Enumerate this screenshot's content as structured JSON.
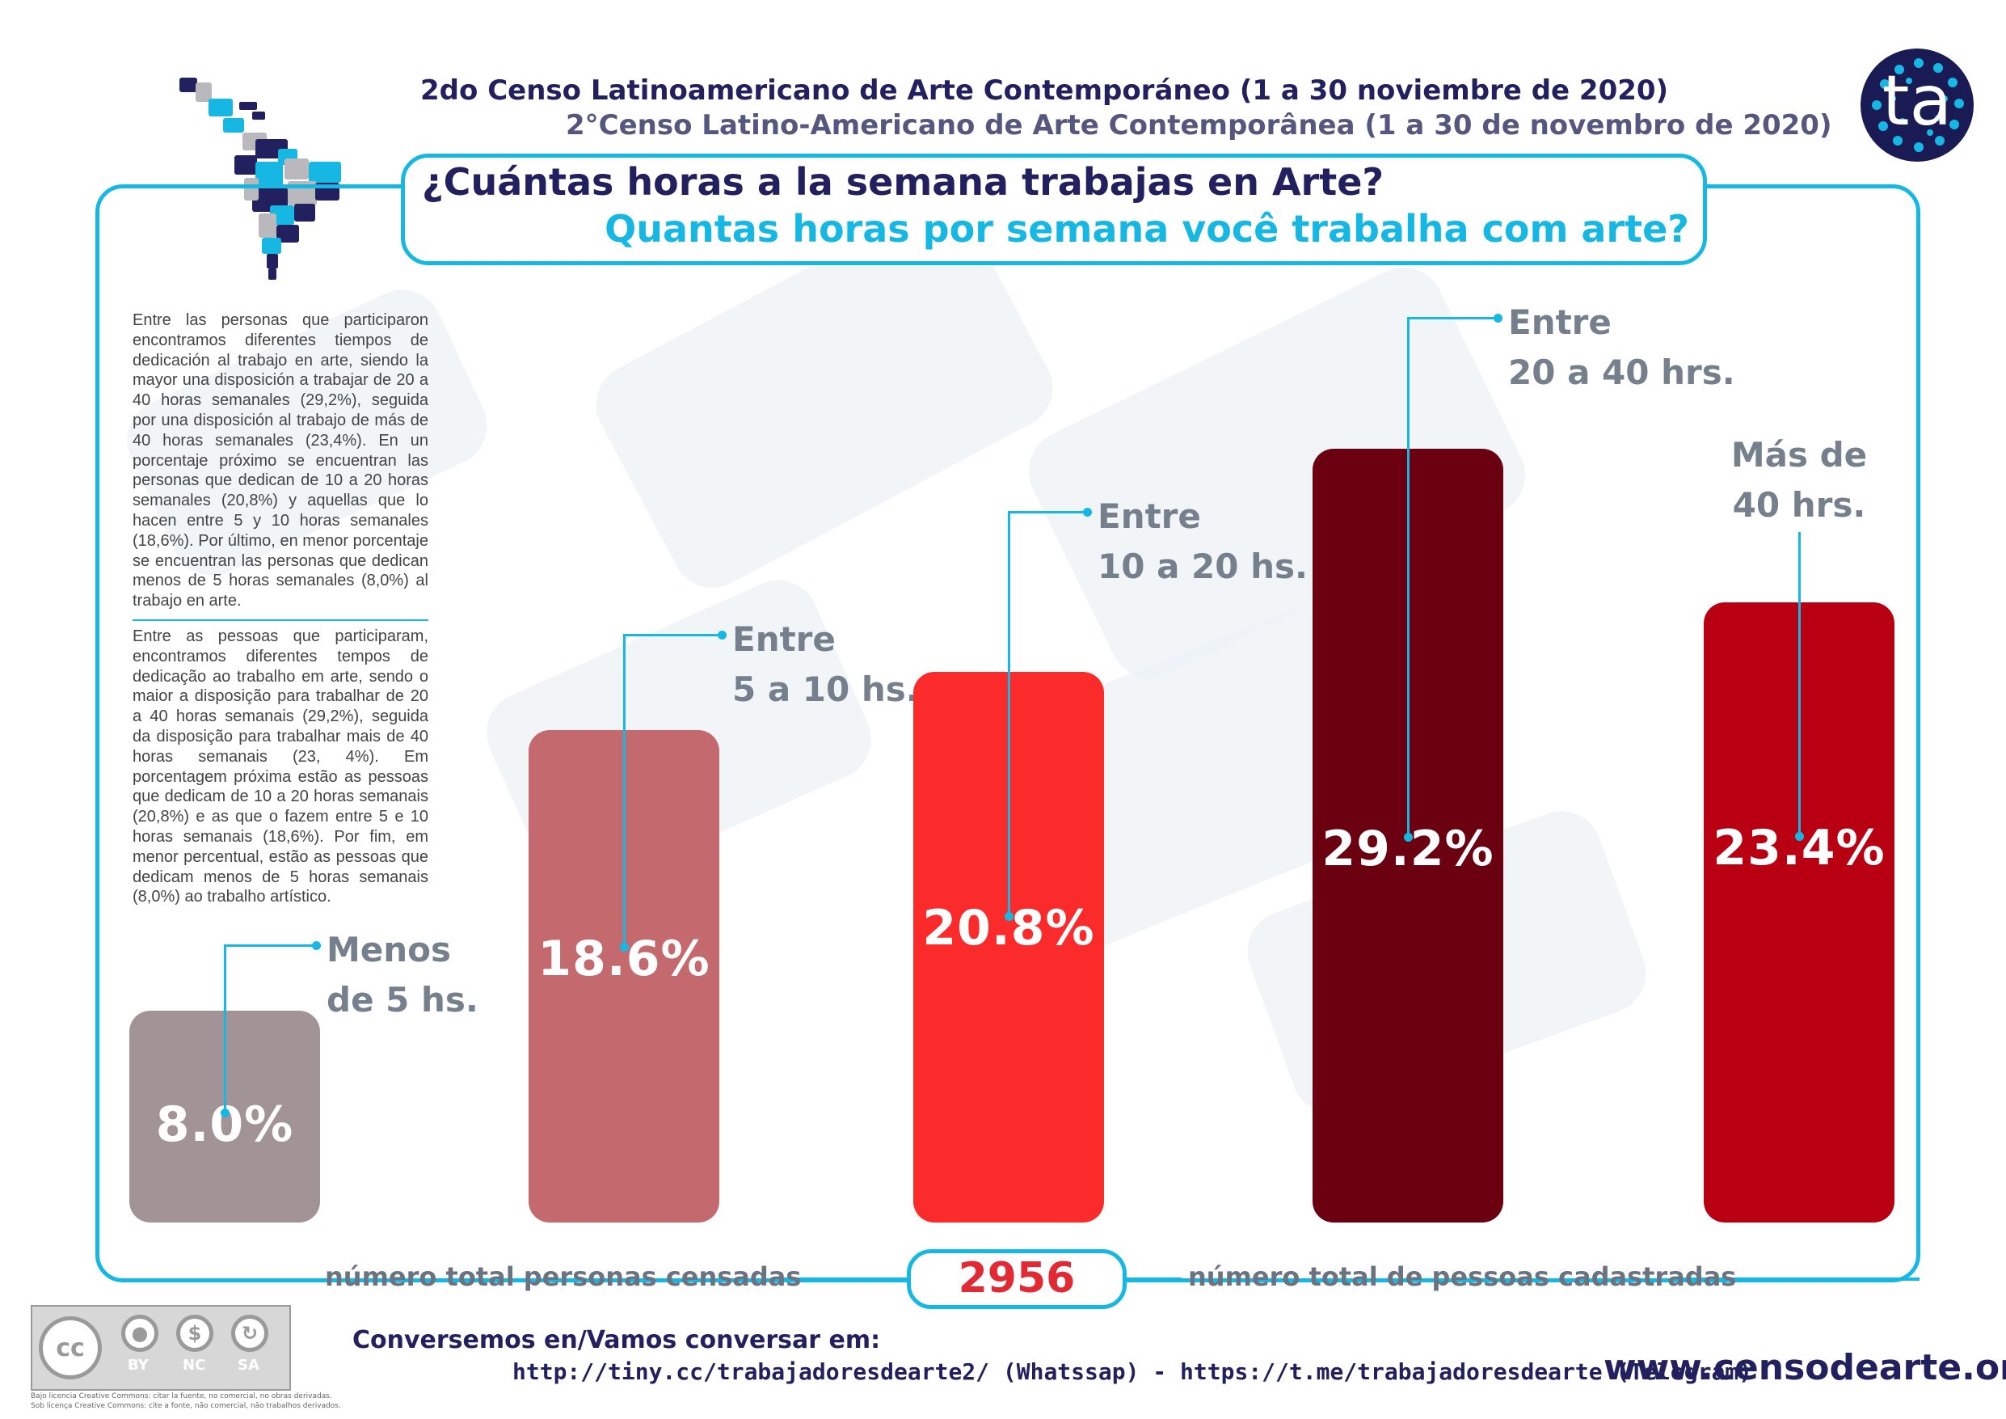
{
  "header": {
    "title_es": "2do Censo Latinoamericano de Arte Contemporáneo (1 a 30 noviembre de 2020)",
    "title_pt": "2°Censo Latino-Americano de Arte Contemporânea (1 a 30 de novembro de 2020)",
    "question_es": "¿Cuántas horas a la semana trabajas en Arte?",
    "question_pt": "Quantas horas por semana você trabalha com arte?",
    "logo_text": "ta"
  },
  "text": {
    "paragraph_es": "Entre las personas que participaron encontramos diferentes tiempos de dedicación al trabajo en arte, siendo la mayor una disposición a trabajar de 20 a 40 horas semanales (29,2%), seguida por una disposición al trabajo de más de 40 horas semanales (23,4%). En un porcentaje próximo se encuentran las personas que dedican de 10 a 20 horas semanales (20,8%) y aquellas que lo hacen entre 5 y 10 horas semanales (18,6%). Por último, en menor porcentaje se encuentran las personas que dedican menos de 5 horas semanales (8,0%) al trabajo en arte.",
    "paragraph_pt": "Entre as pessoas que participaram, encontramos diferentes tempos de dedicação ao trabalho em arte, sendo o maior a disposição para trabalhar de 20 a 40 horas semanais (29,2%), seguida da disposição para trabalhar mais de 40 horas semanais (23, 4%). Em porcentagem próxima estão as pessoas que dedicam de 10 a 20 horas semanais (20,8%) e as que o fazem entre 5 e 10 horas semanais (18,6%). Por fim, em menor percentual, estão as pessoas que dedicam menos de 5 horas semanais (8,0%) ao trabalho artístico."
  },
  "chart_data": {
    "type": "bar",
    "categories": [
      [
        "Menos",
        "de 5 hs."
      ],
      [
        "Entre",
        "5 a 10 hs."
      ],
      [
        "Entre",
        "10 a 20 hs."
      ],
      [
        "Entre",
        "20 a 40 hrs."
      ],
      [
        "Más de",
        "40 hrs."
      ]
    ],
    "values": [
      8.0,
      18.6,
      20.8,
      29.2,
      23.4
    ],
    "value_labels": [
      "8.0%",
      "18.6%",
      "20.8%",
      "29.2%",
      "23.4%"
    ],
    "colors": [
      "#a29397",
      "#c4696d",
      "#fb2a2b",
      "#6b0011",
      "#b80012"
    ],
    "ylim": [
      0,
      31.5
    ]
  },
  "footer": {
    "total_label_es": "número total personas censadas",
    "total_value": "2956",
    "total_label_pt": "número total de pessoas cadastradas",
    "conversation_label": "Conversemos en/Vamos conversar em:",
    "links": "http://tiny.cc/trabajadoresdearte2/ (Whatssap) - https://t.me/trabajadoresdearte (Telegram)",
    "website": "www.censodearte.org"
  },
  "license": {
    "cc_label": "cc",
    "tags": [
      "BY",
      "NC",
      "SA"
    ],
    "note_es": "Bajo licencia Creative Commons: citar la fuente, no comercial, no obras derivadas.",
    "note_pt": "Sob licença Creative Commons: cite a fonte, não comercial, não trabalhos derivados."
  },
  "colors": {
    "accent": "#16b8e3",
    "navy": "#22205e",
    "label_gray": "#75808c",
    "total_red": "#e12a34"
  }
}
